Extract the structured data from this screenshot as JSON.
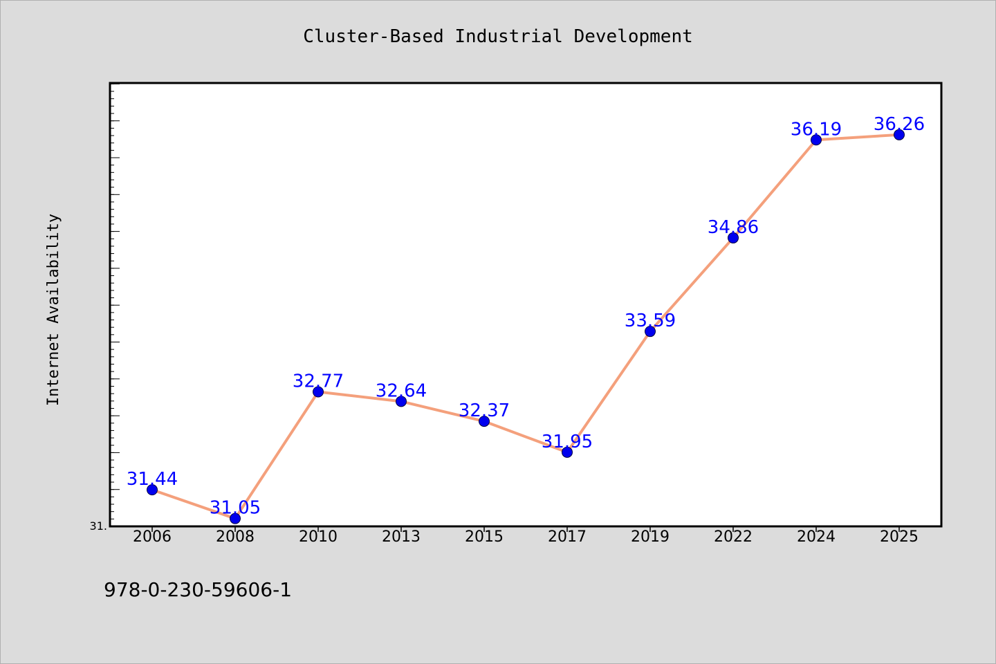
{
  "chart_data": {
    "type": "line",
    "title": "Cluster-Based Industrial Development",
    "xlabel": "",
    "ylabel": "Internet Availability",
    "categories": [
      "2006",
      "2008",
      "2010",
      "2013",
      "2015",
      "2017",
      "2019",
      "2022",
      "2024",
      "2025"
    ],
    "series": [
      {
        "values": [
          31.44,
          31.05,
          32.77,
          32.64,
          32.37,
          31.95,
          33.59,
          34.86,
          36.19,
          36.26
        ],
        "data_labels": [
          "31.44",
          "31.05",
          "32.77",
          "32.64",
          "32.37",
          "31.95",
          "33.59",
          "34.86",
          "36.19",
          "36.26"
        ]
      }
    ],
    "ylim": [
      31.0,
      37.0
    ],
    "ytick_labels": [
      "31."
    ],
    "grid": false,
    "line_color": "#f4a07c",
    "marker_color": "#0000ee",
    "label_color": "#0000ff",
    "plot_background": "#ffffff",
    "figure_background": "#dcdcdc"
  },
  "footer": {
    "text": "978-0-230-59606-1"
  }
}
